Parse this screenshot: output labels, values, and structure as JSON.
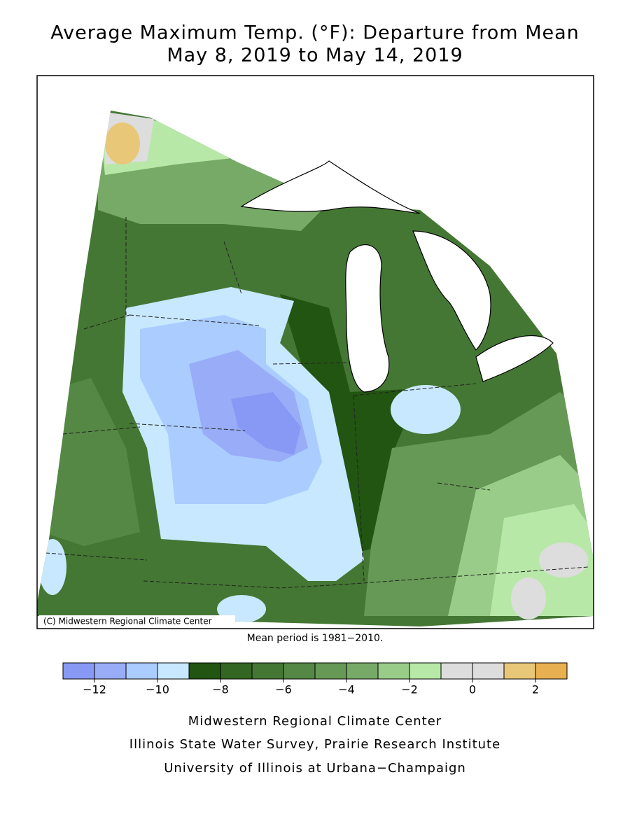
{
  "title": {
    "line1": "Average Maximum Temp. (°F): Departure from Mean",
    "line2": "May 8, 2019 to May 14, 2019"
  },
  "map": {
    "credit": "(C) Midwestern Regional Climate Center"
  },
  "note": "Mean period is 1981−2010.",
  "legend": {
    "bins": [
      -13,
      -12,
      -11,
      -10,
      -9,
      -8,
      -7,
      -6,
      -5,
      -4,
      -3,
      -2,
      -1,
      0,
      1,
      2,
      3
    ],
    "colors": [
      "#8899f5",
      "#99acf7",
      "#aaccff",
      "#c8e8ff",
      "#225511",
      "#336622",
      "#447733",
      "#558844",
      "#669955",
      "#77aa66",
      "#99cc88",
      "#b8e8a8",
      "#dddddd",
      "#dddddd",
      "#e8c878",
      "#e8b050"
    ],
    "ticks": [
      {
        "value": -12,
        "label": "−12"
      },
      {
        "value": -10,
        "label": "−10"
      },
      {
        "value": -8,
        "label": "−8"
      },
      {
        "value": -6,
        "label": "−6"
      },
      {
        "value": -4,
        "label": "−4"
      },
      {
        "value": -2,
        "label": "−2"
      },
      0,
      2
    ]
  },
  "footer": {
    "line1": "Midwestern Regional Climate Center",
    "line2": "Illinois State Water Survey, Prairie Research Institute",
    "line3": "University of Illinois at Urbana−Champaign"
  }
}
